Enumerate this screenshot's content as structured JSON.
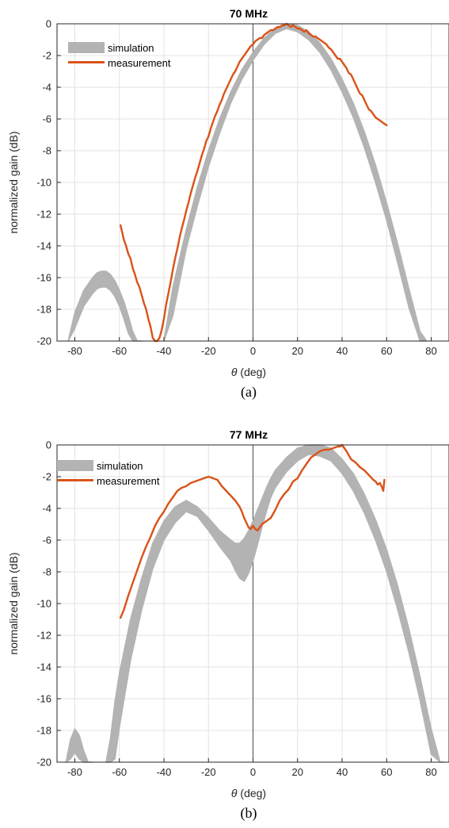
{
  "colors": {
    "simulation": "#b3b3b3",
    "measurement": "#d95319",
    "grid": "#e3e3e3",
    "axis": "#262626"
  },
  "chart_data": [
    {
      "type": "line",
      "title": "70 MHz",
      "caption": "(a)",
      "xlabel_symbol": "θ",
      "xlabel_unit": " (deg)",
      "ylabel": "normalized gain (dB)",
      "xlim": [
        -88,
        88
      ],
      "ylim": [
        -20,
        0
      ],
      "xticks": [
        -80,
        -60,
        -40,
        -20,
        0,
        20,
        40,
        60,
        80
      ],
      "yticks": [
        0,
        -2,
        -4,
        -6,
        -8,
        -10,
        -12,
        -14,
        -16,
        -18,
        -20
      ],
      "grid": true,
      "zero_line": true,
      "legend_position": "top-left",
      "series": [
        {
          "name": "simulation",
          "style": "band",
          "lobes": [
            {
              "x": [
                -83,
                -80,
                -76,
                -72,
                -70,
                -68,
                -66,
                -64,
                -62,
                -60,
                -58,
                -56,
                -54,
                -52,
                -50
              ],
              "upper": [
                -20,
                -18.2,
                -16.8,
                -16.0,
                -15.7,
                -15.6,
                -15.6,
                -15.8,
                -16.2,
                -16.8,
                -17.5,
                -18.4,
                -19.4,
                -20,
                -20
              ],
              "lower": [
                -20,
                -19.2,
                -17.8,
                -17.0,
                -16.7,
                -16.6,
                -16.6,
                -16.8,
                -17.2,
                -17.8,
                -18.6,
                -19.5,
                -20,
                -20,
                -20
              ]
            },
            {
              "x": [
                -40,
                -36,
                -30,
                -25,
                -20,
                -15,
                -10,
                -5,
                0,
                5,
                10,
                15,
                20,
                25,
                30,
                35,
                40,
                45,
                50,
                55,
                60,
                65,
                70,
                75,
                78
              ],
              "upper": [
                -20,
                -16.6,
                -13.0,
                -10.3,
                -8.0,
                -6.0,
                -4.3,
                -2.9,
                -1.8,
                -0.9,
                -0.3,
                0,
                -0.1,
                -0.5,
                -1.2,
                -2.2,
                -3.5,
                -5.0,
                -6.8,
                -8.9,
                -11.3,
                -13.9,
                -16.7,
                -19.4,
                -20
              ],
              "lower": [
                -20,
                -18.4,
                -14.2,
                -11.5,
                -9.0,
                -6.9,
                -5.0,
                -3.5,
                -2.3,
                -1.3,
                -0.6,
                -0.3,
                -0.5,
                -1.0,
                -1.8,
                -2.9,
                -4.3,
                -5.9,
                -7.8,
                -10.0,
                -12.4,
                -15.1,
                -17.9,
                -20,
                -20
              ]
            }
          ]
        },
        {
          "name": "measurement",
          "style": "line",
          "x": [
            -59.5,
            -59,
            -58,
            -57,
            -56,
            -55,
            -54,
            -53,
            -52,
            -51,
            -50,
            -49,
            -48,
            -47,
            -46,
            -45,
            -44,
            -43,
            -42,
            -41,
            -40,
            -39,
            -38,
            -37,
            -36,
            -35,
            -34,
            -33,
            -32,
            -31,
            -30,
            -29,
            -28,
            -27,
            -26,
            -25,
            -24,
            -23,
            -22,
            -21,
            -20,
            -19,
            -18,
            -17,
            -16,
            -15,
            -14,
            -13,
            -12,
            -11,
            -10,
            -9,
            -8,
            -7,
            -6,
            -5,
            -4,
            -3,
            -2,
            -1,
            0,
            1,
            2,
            3,
            4,
            5,
            6,
            7,
            8,
            9,
            10,
            11,
            12,
            13,
            14,
            15,
            16,
            17,
            18,
            19,
            20,
            21,
            22,
            23,
            24,
            25,
            26,
            27,
            28,
            29,
            30,
            31,
            32,
            33,
            34,
            35,
            36,
            37,
            38,
            39,
            40,
            41,
            42,
            43,
            44,
            45,
            46,
            47,
            48,
            49,
            50,
            51,
            52,
            53,
            54,
            55,
            56,
            57,
            58,
            59,
            60
          ],
          "y": [
            -12.7,
            -13.0,
            -13.6,
            -14.0,
            -14.5,
            -14.8,
            -15.4,
            -15.8,
            -16.3,
            -16.6,
            -17.1,
            -17.6,
            -18.0,
            -18.6,
            -19.1,
            -19.8,
            -20,
            -20,
            -19.8,
            -19.3,
            -18.6,
            -17.7,
            -17.0,
            -16.3,
            -15.5,
            -14.8,
            -14.2,
            -13.5,
            -12.9,
            -12.4,
            -11.8,
            -11.3,
            -10.7,
            -10.2,
            -9.7,
            -9.3,
            -8.8,
            -8.3,
            -7.9,
            -7.4,
            -7.1,
            -6.6,
            -6.2,
            -5.8,
            -5.5,
            -5.1,
            -4.8,
            -4.4,
            -4.1,
            -3.8,
            -3.5,
            -3.2,
            -3.0,
            -2.7,
            -2.4,
            -2.2,
            -2.0,
            -1.8,
            -1.6,
            -1.4,
            -1.3,
            -1.1,
            -1.0,
            -0.9,
            -0.9,
            -0.7,
            -0.6,
            -0.5,
            -0.4,
            -0.4,
            -0.3,
            -0.2,
            -0.2,
            -0.1,
            -0.1,
            0.0,
            -0.1,
            -0.2,
            -0.1,
            -0.2,
            -0.3,
            -0.3,
            -0.4,
            -0.5,
            -0.4,
            -0.6,
            -0.7,
            -0.8,
            -0.8,
            -0.9,
            -1.0,
            -1.1,
            -1.2,
            -1.3,
            -1.5,
            -1.6,
            -1.8,
            -2.0,
            -2.2,
            -2.2,
            -2.4,
            -2.6,
            -2.8,
            -3.1,
            -3.2,
            -3.5,
            -3.8,
            -4.1,
            -4.4,
            -4.5,
            -4.8,
            -5.1,
            -5.4,
            -5.5,
            -5.7,
            -5.9,
            -6.0,
            -6.1,
            -6.2,
            -6.3,
            -6.4
          ]
        }
      ]
    },
    {
      "type": "line",
      "title": "77 MHz",
      "caption": "(b)",
      "xlabel_symbol": "θ",
      "xlabel_unit": " (deg)",
      "ylabel": "normalized gain (dB)",
      "xlim": [
        -88,
        88
      ],
      "ylim": [
        -20,
        0
      ],
      "xticks": [
        -80,
        -60,
        -40,
        -20,
        0,
        20,
        40,
        60,
        80
      ],
      "yticks": [
        0,
        -2,
        -4,
        -6,
        -8,
        -10,
        -12,
        -14,
        -16,
        -18,
        -20
      ],
      "grid": true,
      "zero_line": true,
      "legend_position": "top-left",
      "series": [
        {
          "name": "simulation",
          "style": "band",
          "lobes": [
            {
              "x": [
                -84,
                -82,
                -80,
                -78,
                -76,
                -74,
                -72
              ],
              "upper": [
                -20,
                -18.6,
                -17.9,
                -18.3,
                -19.3,
                -20,
                -20
              ],
              "lower": [
                -20,
                -19.8,
                -19.4,
                -19.8,
                -20,
                -20,
                -20
              ]
            },
            {
              "x": [
                -66,
                -64,
                -62,
                -60,
                -55,
                -50,
                -45,
                -40,
                -35,
                -30,
                -25,
                -20,
                -15,
                -10,
                -8,
                -6,
                -4,
                -2,
                0,
                2,
                4,
                6,
                8,
                10,
                15,
                20,
                25,
                30,
                35,
                40,
                45,
                50,
                55,
                60,
                65,
                70,
                75,
                80,
                84,
                86
              ],
              "upper": [
                -20,
                -18.5,
                -16.2,
                -14.4,
                -11.0,
                -8.4,
                -6.2,
                -4.8,
                -3.9,
                -3.5,
                -3.9,
                -4.6,
                -5.4,
                -6.0,
                -6.2,
                -6.2,
                -5.9,
                -5.4,
                -4.8,
                -4.1,
                -3.4,
                -2.7,
                -2.1,
                -1.6,
                -0.8,
                -0.2,
                0.0,
                0.0,
                -0.2,
                -0.9,
                -1.8,
                -3.1,
                -4.7,
                -6.6,
                -8.9,
                -11.6,
                -14.6,
                -17.9,
                -20,
                -20
              ],
              "lower": [
                -20,
                -20,
                -19.8,
                -17.8,
                -13.6,
                -10.4,
                -7.8,
                -6.0,
                -4.9,
                -4.2,
                -4.5,
                -5.4,
                -6.4,
                -7.3,
                -7.9,
                -8.4,
                -8.6,
                -8.1,
                -7.3,
                -6.3,
                -5.2,
                -4.2,
                -3.3,
                -2.7,
                -1.7,
                -1.0,
                -0.6,
                -0.7,
                -1.0,
                -1.8,
                -2.9,
                -4.3,
                -6.0,
                -8.0,
                -10.4,
                -13.1,
                -16.1,
                -19.5,
                -20,
                -20
              ]
            }
          ]
        },
        {
          "name": "measurement",
          "style": "line",
          "x": [
            -59.5,
            -58,
            -56,
            -54,
            -52,
            -50,
            -48,
            -46,
            -44,
            -42,
            -40,
            -38,
            -36,
            -34,
            -32,
            -30,
            -28,
            -26,
            -24,
            -22,
            -20,
            -18,
            -16,
            -14,
            -12,
            -10,
            -8,
            -6,
            -5,
            -4,
            -3,
            -2,
            -1,
            0,
            1,
            2,
            3,
            4,
            6,
            8,
            10,
            12,
            14,
            16,
            18,
            20,
            22,
            24,
            26,
            28,
            30,
            32,
            34,
            36,
            38,
            39,
            40,
            41,
            42,
            44,
            46,
            48,
            50,
            52,
            54,
            55,
            56,
            57,
            58,
            58.5,
            59
          ],
          "y": [
            -10.9,
            -10.4,
            -9.5,
            -8.7,
            -7.9,
            -7.1,
            -6.4,
            -5.8,
            -5.1,
            -4.6,
            -4.2,
            -3.7,
            -3.3,
            -2.9,
            -2.7,
            -2.6,
            -2.4,
            -2.3,
            -2.2,
            -2.1,
            -2.0,
            -2.1,
            -2.2,
            -2.6,
            -2.9,
            -3.2,
            -3.5,
            -3.9,
            -4.2,
            -4.6,
            -4.9,
            -5.2,
            -5.3,
            -5.1,
            -5.3,
            -5.4,
            -5.2,
            -5.0,
            -4.8,
            -4.6,
            -4.1,
            -3.5,
            -3.1,
            -2.8,
            -2.3,
            -2.1,
            -1.6,
            -1.2,
            -0.8,
            -0.6,
            -0.4,
            -0.3,
            -0.3,
            -0.2,
            -0.1,
            -0.1,
            0.0,
            -0.2,
            -0.4,
            -0.9,
            -1.1,
            -1.4,
            -1.6,
            -1.9,
            -2.2,
            -2.3,
            -2.5,
            -2.4,
            -2.7,
            -2.9,
            -2.2
          ]
        }
      ]
    }
  ]
}
